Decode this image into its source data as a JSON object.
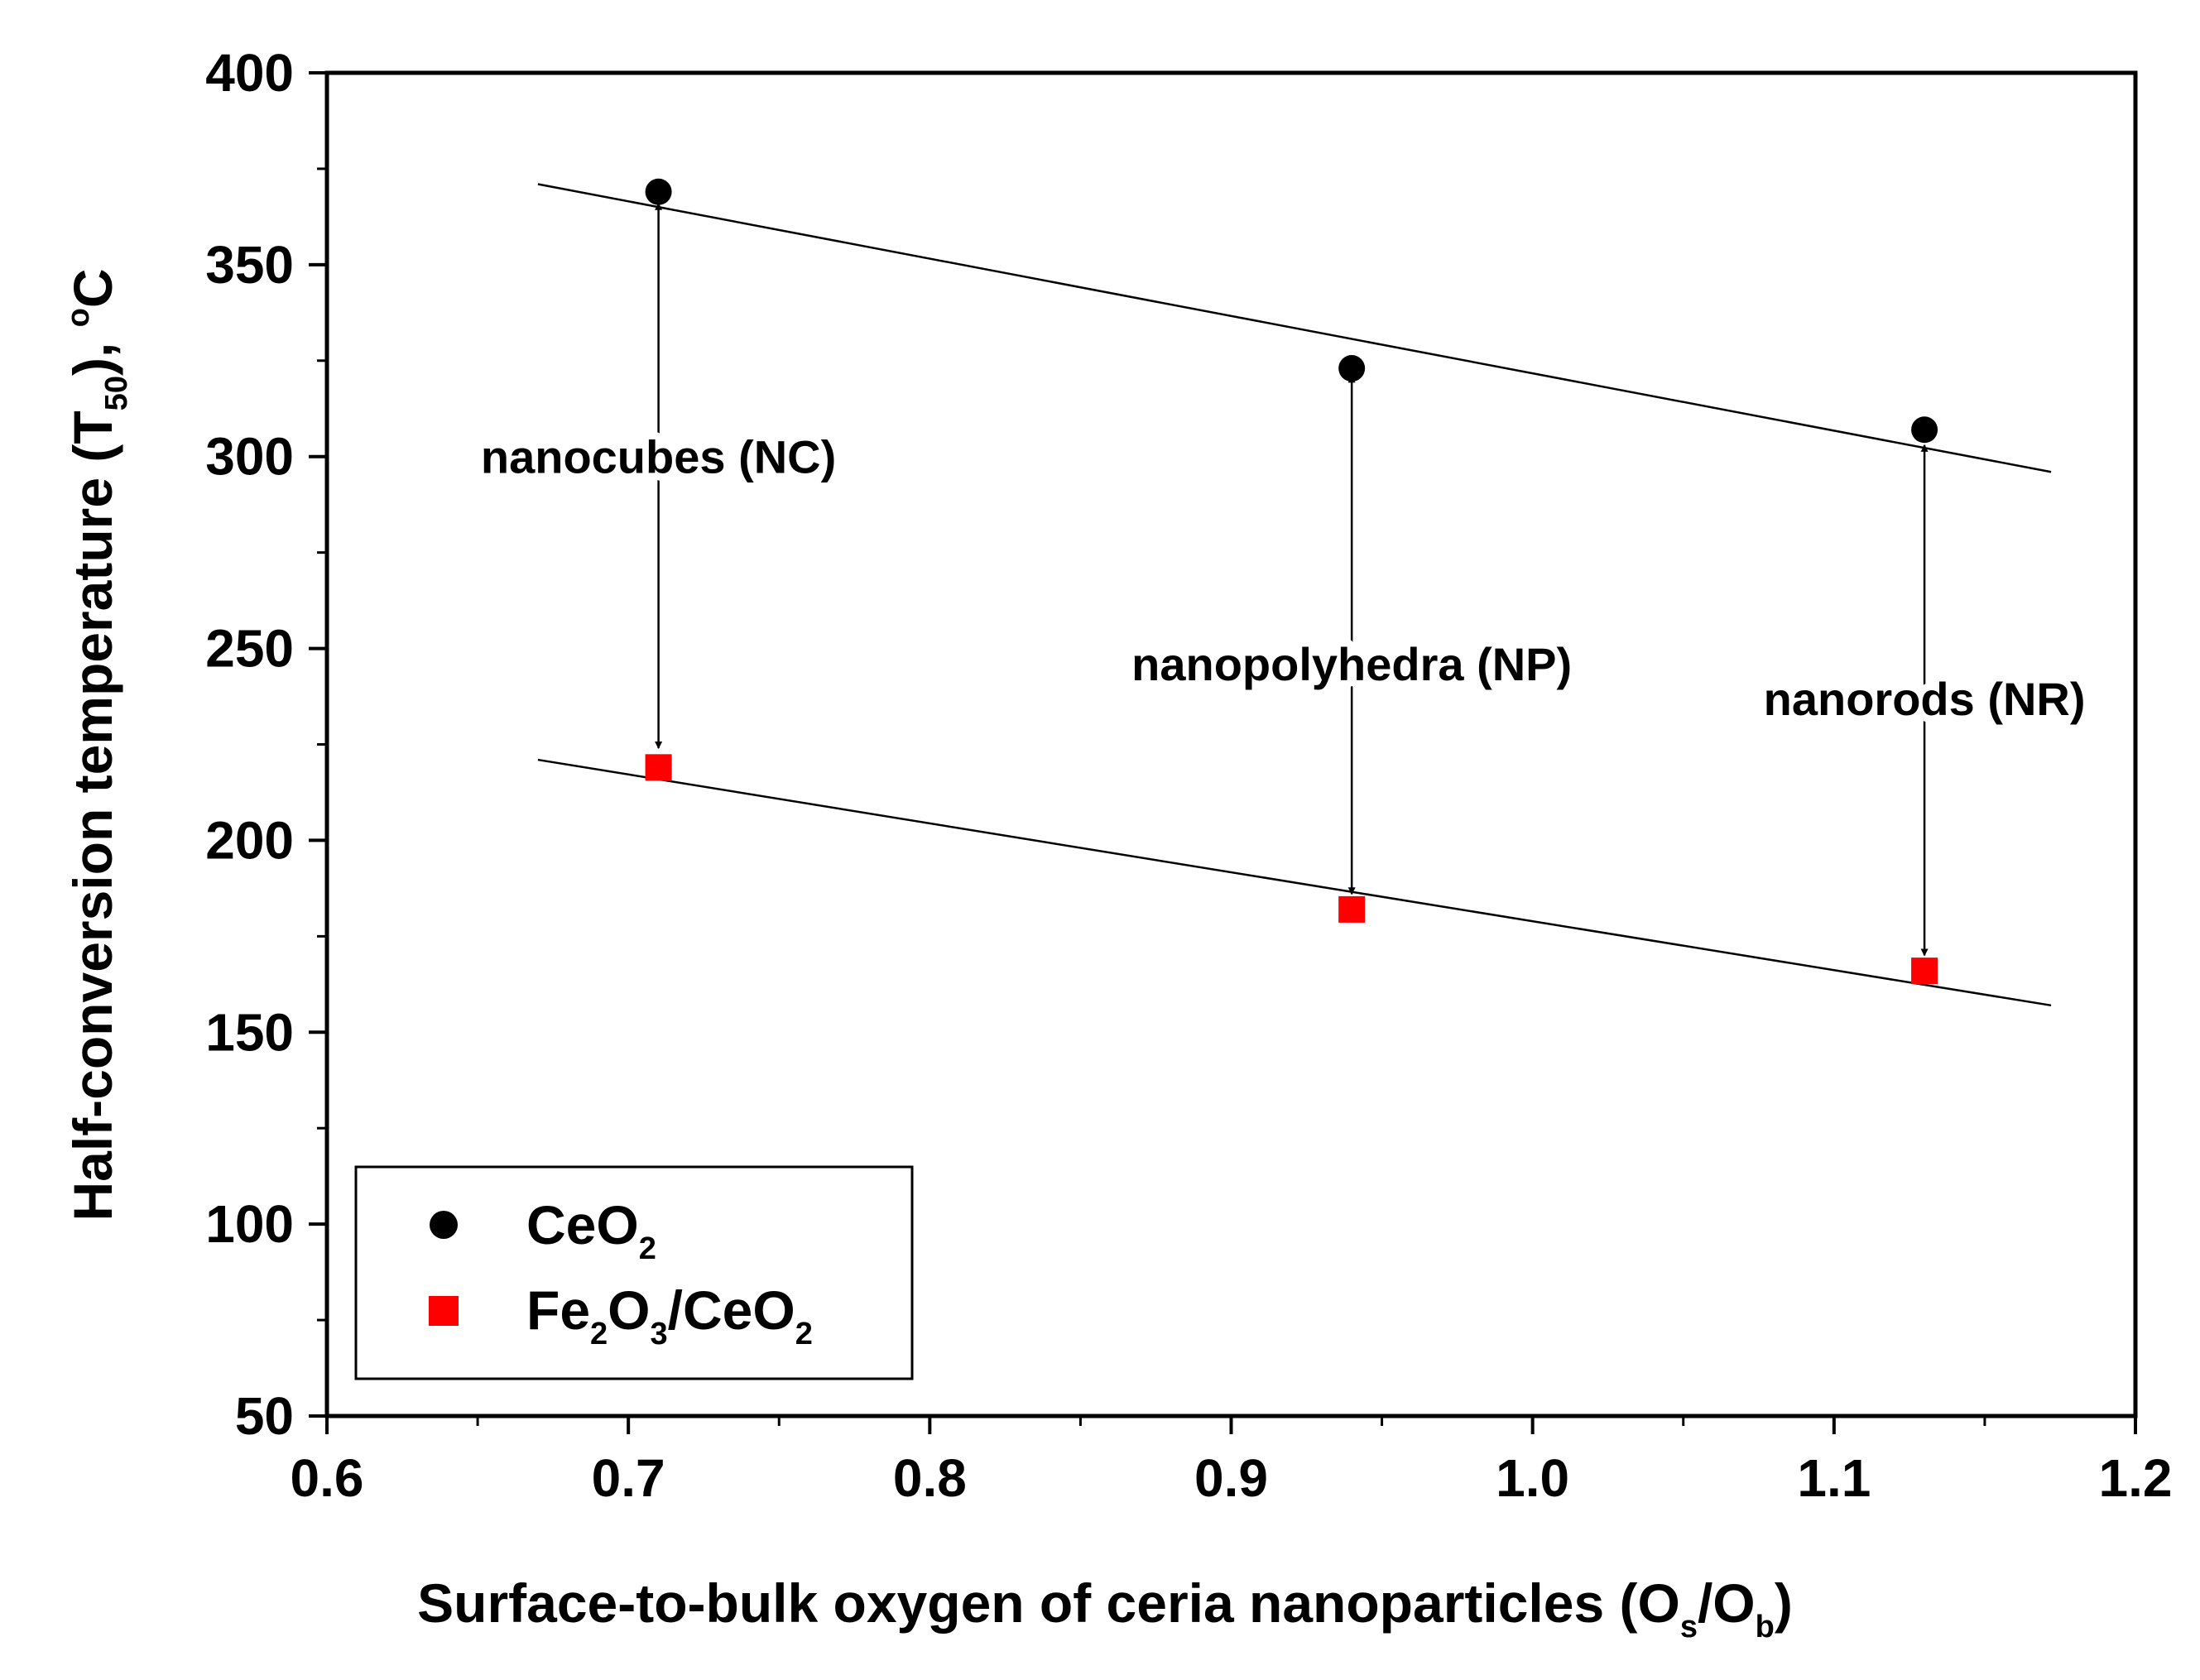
{
  "chart_data": {
    "type": "scatter",
    "title": "",
    "xlabel": {
      "main": "Surface-to-bulk oxygen of ceria nanoparticles (O",
      "sub1": "s",
      "mid": "/O",
      "sub2": "b",
      "end": ")"
    },
    "ylabel": {
      "main": "Half-conversion temperature (T",
      "sub": "50",
      "mid": "), ",
      "sup": "o",
      "end": "C"
    },
    "xlim": [
      0.6,
      1.2
    ],
    "ylim": [
      50,
      400
    ],
    "xticks": [
      "0.6",
      "0.7",
      "0.8",
      "0.9",
      "1.0",
      "1.1",
      "1.2"
    ],
    "yticks": [
      "50",
      "100",
      "150",
      "200",
      "250",
      "300",
      "350",
      "400"
    ],
    "grid": false,
    "legend_position": "bottom-left",
    "series": [
      {
        "name": "CeO2",
        "legend_main": "CeO",
        "legend_sub": "2",
        "marker": "circle",
        "color": "#000000",
        "x": [
          0.71,
          0.94,
          1.13
        ],
        "y": [
          369,
          323,
          307
        ]
      },
      {
        "name": "Fe2O3/CeO2",
        "legend_parts": [
          "Fe",
          "2",
          "O",
          "3",
          "/CeO",
          "2"
        ],
        "marker": "square",
        "color": "#ff0000",
        "x": [
          0.71,
          0.94,
          1.13
        ],
        "y": [
          219,
          182,
          166
        ]
      }
    ],
    "fit_lines": [
      {
        "name": "CeO2 trend",
        "x": [
          0.67,
          1.172
        ],
        "y": [
          371,
          296
        ]
      },
      {
        "name": "Fe2O3/CeO2 trend",
        "x": [
          0.67,
          1.172
        ],
        "y": [
          221,
          157
        ]
      }
    ],
    "arrows": [
      {
        "x": 0.71,
        "y_from": 366,
        "y_to": 224
      },
      {
        "x": 0.94,
        "y_from": 321,
        "y_to": 186
      },
      {
        "x": 1.13,
        "y_from": 303,
        "y_to": 170
      }
    ],
    "annotations": [
      {
        "text": "nanocubes (NC)",
        "x": 0.71,
        "y": 300
      },
      {
        "text": "nanopolyhedra (NP)",
        "x": 0.94,
        "y": 246
      },
      {
        "text": "nanorods (NR)",
        "x": 1.13,
        "y": 237
      }
    ]
  }
}
